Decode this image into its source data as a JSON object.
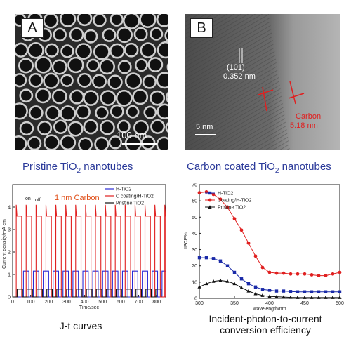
{
  "panel_a": {
    "tag": "A",
    "scale_label": "100 nm",
    "caption_prefix": "Pristine TiO",
    "caption_sub": "2",
    "caption_suffix": " nanotubes"
  },
  "panel_b": {
    "tag": "B",
    "lattice_label_1": "(101)",
    "lattice_label_2": "0.352 nm",
    "scale_label": "5 nm",
    "carbon_label_1": "Carbon",
    "carbon_label_2": "5.18 nm",
    "caption_prefix": "Carbon coated TiO",
    "caption_sub": "2",
    "caption_suffix": " nanotubes"
  },
  "jt_chart": {
    "annotation": "1 nm Carbon",
    "ylabel": "Current density/mA cm",
    "xlabel": "Time/sec",
    "on_label": "on",
    "off_label": "off",
    "caption": "J-t curves"
  },
  "ipce_chart": {
    "ylabel": "IPCE%",
    "xlabel": "wavelength/nm",
    "caption_line1": "Incident-photon-to-current",
    "caption_line2": "conversion efficiency"
  },
  "chart_data": [
    {
      "type": "line",
      "x_range": [
        0,
        850
      ],
      "ylim": [
        0,
        5
      ],
      "x_ticks": [
        "0",
        "100",
        "200",
        "300",
        "400",
        "500",
        "600",
        "700",
        "800"
      ],
      "y_ticks": [
        "0",
        "1",
        "2",
        "3",
        "4"
      ],
      "series": [
        {
          "name": "H-TiO2",
          "color": "#2b2bd6",
          "on_value": 1.15,
          "off_value": 0.0,
          "period": 55,
          "start": 60
        },
        {
          "name": "C coating/H-TiO2",
          "color": "#e02020",
          "on_value": 3.6,
          "spike_value": 4.1,
          "off_value": 0.0,
          "period": 55,
          "start": 20
        },
        {
          "name": "Pristine TiO2",
          "color": "#111111",
          "on_value": 0.35,
          "off_value": 0.0,
          "period": 55,
          "start": 25
        }
      ]
    },
    {
      "type": "line",
      "x_range": [
        300,
        500
      ],
      "ylim": [
        0,
        70
      ],
      "x_ticks": [
        "300",
        "350",
        "400",
        "450",
        "500"
      ],
      "y_ticks": [
        "0",
        "10",
        "20",
        "30",
        "40",
        "50",
        "60",
        "70"
      ],
      "series": [
        {
          "name": "H-TiO2",
          "color": "#1a2aa8",
          "marker": "square",
          "x": [
            300,
            310,
            320,
            330,
            340,
            350,
            360,
            370,
            380,
            390,
            400,
            410,
            420,
            430,
            440,
            450,
            460,
            470,
            480,
            490,
            500
          ],
          "y": [
            25,
            25,
            24.5,
            23,
            20,
            16,
            12,
            9,
            7,
            5.5,
            5,
            4.5,
            4.5,
            4.2,
            4,
            4,
            4,
            4,
            4,
            4,
            4
          ]
        },
        {
          "name": "Coating/H-TiO2",
          "color": "#e02020",
          "marker": "circle",
          "x": [
            300,
            310,
            320,
            330,
            340,
            350,
            360,
            370,
            380,
            390,
            400,
            410,
            420,
            430,
            440,
            450,
            460,
            470,
            480,
            490,
            500
          ],
          "y": [
            65,
            65.5,
            64,
            61,
            56,
            49,
            42,
            34,
            26,
            19,
            16,
            15.5,
            15.5,
            15,
            15,
            15,
            14.5,
            14,
            14,
            15,
            16
          ]
        },
        {
          "name": "Pristine TiO2",
          "color": "#111111",
          "marker": "triangle",
          "x": [
            300,
            310,
            320,
            330,
            340,
            350,
            360,
            370,
            380,
            390,
            400,
            410,
            420,
            430,
            440,
            450,
            460,
            470,
            480,
            490,
            500
          ],
          "y": [
            7,
            9,
            10.5,
            11,
            10.5,
            9,
            6.5,
            4.5,
            2.8,
            1.8,
            1.2,
            1,
            0.8,
            0.6,
            0.5,
            0.5,
            0.5,
            0.5,
            0.5,
            0.5,
            0.5
          ]
        }
      ]
    }
  ]
}
